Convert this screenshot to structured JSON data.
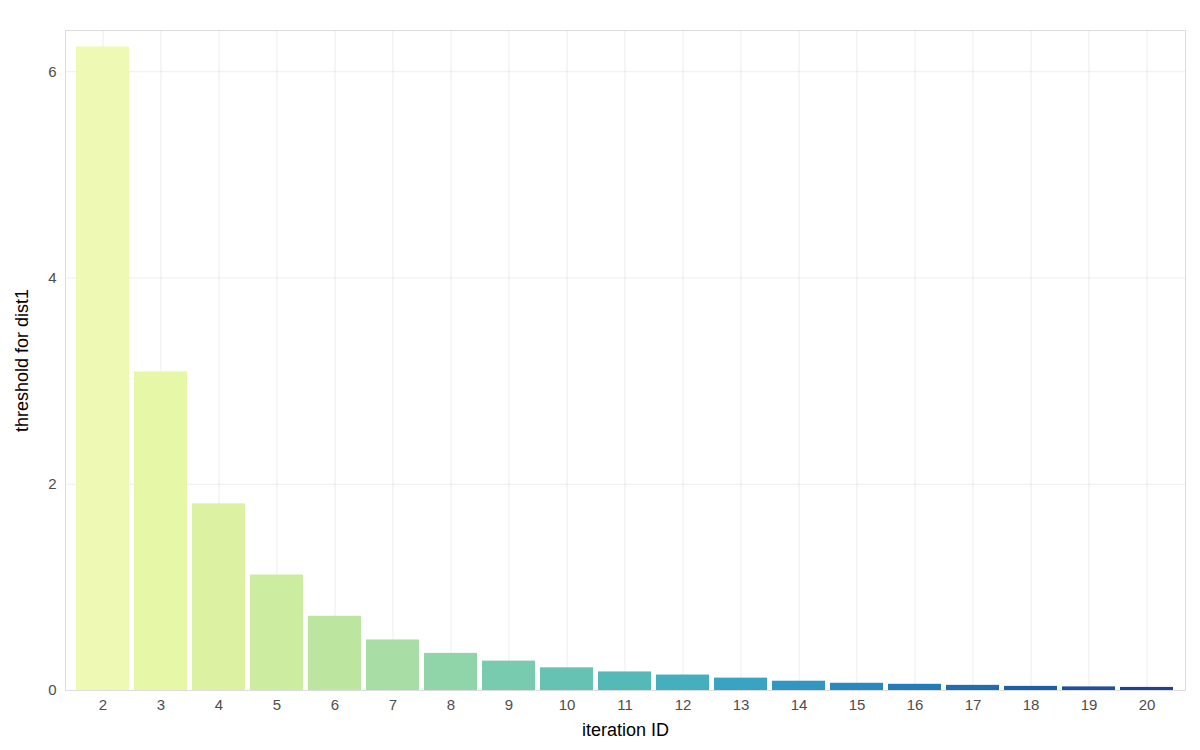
{
  "chart_data": {
    "type": "bar",
    "x_label": "iteration ID",
    "y_label": "threshold for dist1",
    "categories": [
      2,
      3,
      4,
      5,
      6,
      7,
      8,
      9,
      10,
      11,
      12,
      13,
      14,
      15,
      16,
      17,
      18,
      19,
      20
    ],
    "values": [
      6.24,
      3.09,
      1.81,
      1.12,
      0.72,
      0.49,
      0.36,
      0.285,
      0.22,
      0.18,
      0.15,
      0.12,
      0.09,
      0.07,
      0.06,
      0.05,
      0.04,
      0.035,
      0.03
    ],
    "colors": [
      "#eefab4",
      "#e7f7a8",
      "#dcf2a2",
      "#ccec9f",
      "#bce5a0",
      "#a8dea6",
      "#90d4aa",
      "#79cbaf",
      "#66c3b3",
      "#55b9b8",
      "#46afbd",
      "#3aa3c1",
      "#3196c1",
      "#2989be",
      "#237cb8",
      "#1f6daf",
      "#1e5ea6",
      "#214f9c",
      "#234191"
    ],
    "ylim": [
      0,
      6.4
    ],
    "yticks": [
      0,
      2,
      4,
      6
    ],
    "grid": true
  }
}
